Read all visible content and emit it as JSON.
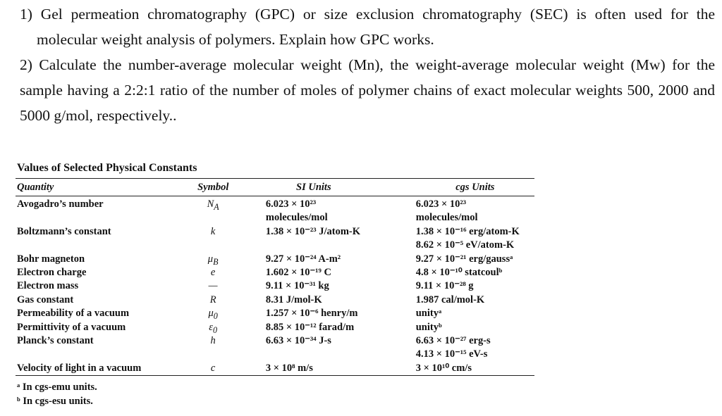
{
  "questions": [
    "1) Gel permeation chromatography (GPC) or size exclusion chromatography (SEC) is often used for the molecular weight analysis of polymers. Explain how GPC works.",
    "2) Calculate the number-average molecular weight (Mn), the weight-average molecular weight (Mw) for the sample having a 2:2:1 ratio of the number of moles of polymer chains of exact molecular weights 500, 2000 and 5000 g/mol, respectively.."
  ],
  "table": {
    "title": "Values of Selected Physical Constants",
    "headers": [
      "Quantity",
      "Symbol",
      "SI Units",
      "cgs Units"
    ],
    "rows": [
      {
        "quantity": "Avogadro’s number",
        "symbol": {
          "base": "N",
          "sub": "A"
        },
        "si": [
          "6.023 × 10²³",
          "molecules/mol"
        ],
        "cgs": [
          "6.023 × 10²³",
          "molecules/mol"
        ]
      },
      {
        "quantity": "Boltzmann’s constant",
        "symbol": {
          "base": "k"
        },
        "si": [
          "1.38 × 10⁻²³ J/atom-K"
        ],
        "cgs": [
          "1.38 × 10⁻¹⁶ erg/atom-K",
          "8.62 × 10⁻⁵ eV/atom-K"
        ]
      },
      {
        "quantity": "Bohr magneton",
        "symbol": {
          "base": "μ",
          "sub": "B"
        },
        "si": [
          "9.27 × 10⁻²⁴ A-m²"
        ],
        "cgs": [
          "9.27 × 10⁻²¹ erg/gaussᵃ"
        ]
      },
      {
        "quantity": "Electron charge",
        "symbol": {
          "base": "e"
        },
        "si": [
          "1.602 × 10⁻¹⁹ C"
        ],
        "cgs": [
          "4.8 × 10⁻¹⁰ statcoulᵇ"
        ]
      },
      {
        "quantity": "Electron mass",
        "symbol": {
          "base": "—"
        },
        "si": [
          "9.11 × 10⁻³¹ kg"
        ],
        "cgs": [
          "9.11 × 10⁻²⁸ g"
        ]
      },
      {
        "quantity": "Gas constant",
        "symbol": {
          "base": "R"
        },
        "si": [
          "8.31 J/mol-K"
        ],
        "cgs": [
          "1.987 cal/mol-K"
        ]
      },
      {
        "quantity": "Permeability of a vacuum",
        "symbol": {
          "base": "μ",
          "sub": "0"
        },
        "si": [
          "1.257 × 10⁻⁶ henry/m"
        ],
        "cgs": [
          "unityᵃ"
        ]
      },
      {
        "quantity": "Permittivity of a vacuum",
        "symbol": {
          "base": "ε",
          "sub": "0"
        },
        "si": [
          "8.85 × 10⁻¹² farad/m"
        ],
        "cgs": [
          "unityᵇ"
        ]
      },
      {
        "quantity": "Planck’s constant",
        "symbol": {
          "base": "h"
        },
        "si": [
          "6.63 × 10⁻³⁴ J-s"
        ],
        "cgs": [
          "6.63 × 10⁻²⁷ erg-s",
          "4.13 × 10⁻¹⁵ eV-s"
        ]
      },
      {
        "quantity": "Velocity of light in a vacuum",
        "symbol": {
          "base": "c"
        },
        "si": [
          "3 × 10⁸ m/s"
        ],
        "cgs": [
          "3 × 10¹⁰ cm/s"
        ]
      }
    ],
    "footnotes": [
      "ᵃ In cgs-emu units.",
      "ᵇ In cgs-esu units."
    ]
  }
}
